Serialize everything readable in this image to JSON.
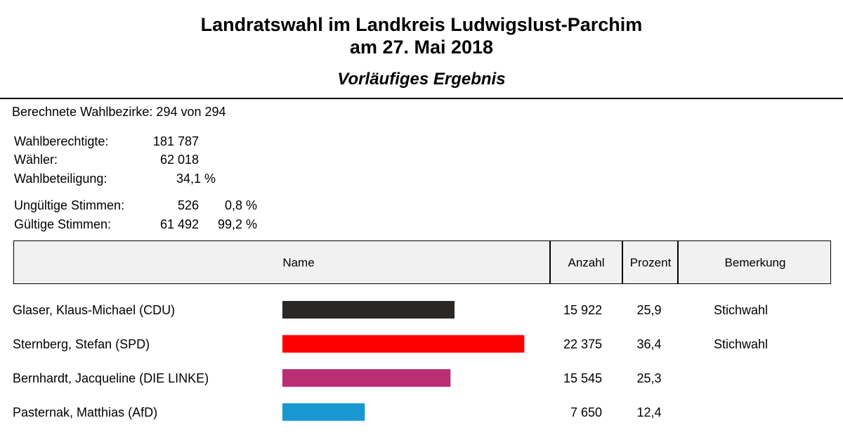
{
  "header": {
    "title_line1": "Landratswahl im Landkreis Ludwigslust-Parchim",
    "title_line2": "am 27. Mai 2018",
    "subtitle": "Vorläufiges Ergebnis"
  },
  "stats": {
    "bezirke": "Berechnete Wahlbezirke: 294 von 294",
    "rows": [
      {
        "label": "Wahlberechtigte:",
        "value": "181 787",
        "pct": ""
      },
      {
        "label": "Wähler:",
        "value": "62 018",
        "pct": ""
      },
      {
        "label": "Wahlbeteiligung:",
        "value": "",
        "pct": "34,1 %"
      },
      {
        "label": "Ungültige Stimmen:",
        "value": "526",
        "pct": "0,8 %"
      },
      {
        "label": "Gültige Stimmen:",
        "value": "61 492",
        "pct": "99,2 %"
      }
    ]
  },
  "table": {
    "headers": {
      "name": "Name",
      "anzahl": "Anzahl",
      "prozent": "Prozent",
      "bemerkung": "Bemerkung"
    }
  },
  "chart_data": {
    "type": "bar",
    "categories": [
      "Glaser, Klaus-Michael (CDU)",
      "Sternberg, Stefan (SPD)",
      "Bernhardt, Jacqueline (DIE LINKE)",
      "Pasternak, Matthias (AfD)"
    ],
    "values": [
      25.9,
      36.4,
      25.3,
      12.4
    ],
    "counts": [
      "15 922",
      "22 375",
      "15 545",
      "7 650"
    ],
    "percent_labels": [
      "25,9",
      "36,4",
      "25,3",
      "12,4"
    ],
    "remarks": [
      "Stichwahl",
      "Stichwahl",
      "",
      ""
    ],
    "colors": [
      "#2a2724",
      "#ff0000",
      "#bb2d74",
      "#1997d1"
    ]
  }
}
